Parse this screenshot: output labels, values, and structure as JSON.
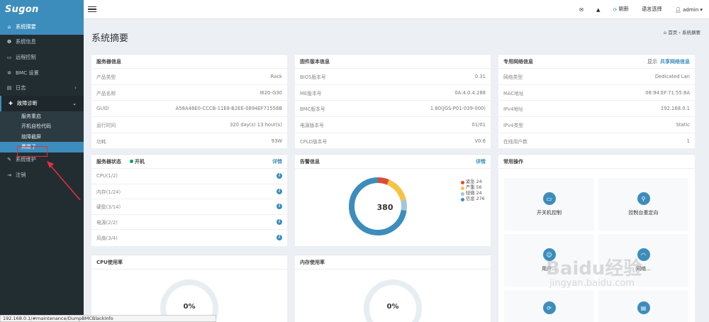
{
  "app": {
    "logo": "Sugon"
  },
  "sidebar": {
    "items": [
      {
        "label": "系统摘要",
        "icon": "home-icon",
        "glyph": "⌂"
      },
      {
        "label": "系统信息",
        "icon": "info-icon",
        "glyph": "❶"
      },
      {
        "label": "远程控制",
        "icon": "monitor-icon",
        "glyph": "▭"
      },
      {
        "label": "BMC 设置",
        "icon": "gear-icon",
        "glyph": "✲"
      },
      {
        "label": "日志",
        "icon": "log-icon",
        "glyph": "▤",
        "chevron": "›"
      },
      {
        "label": "故障诊断",
        "icon": "diagnosis-icon",
        "glyph": "✚",
        "chevron": "⌄"
      }
    ],
    "submenu": [
      "服务重启",
      "开机自检代码",
      "故障截屏",
      "黑匣子"
    ],
    "items_after": [
      {
        "label": "系统维护",
        "icon": "wrench-icon",
        "glyph": "✎"
      },
      {
        "label": "注销",
        "icon": "logout-icon",
        "glyph": "⇥"
      }
    ]
  },
  "topbar": {
    "refresh": "刷新",
    "language": "语言选择",
    "user": "admin",
    "caret": "▾"
  },
  "page": {
    "title": "系统摘要",
    "breadcrumb_home": "首页",
    "breadcrumb_sep": "›",
    "breadcrumb_current": "系统摘要"
  },
  "server_info": {
    "title": "服务器信息",
    "rows": [
      {
        "k": "产品类型",
        "v": "Rack"
      },
      {
        "k": "产品名称",
        "v": "I620-G30"
      },
      {
        "k": "GUID",
        "v": "A58A46E0-CCCB-11E8-B2EE-0894EF71558B"
      },
      {
        "k": "运行时间",
        "v": "320 day(s) 13 hour(s)"
      },
      {
        "k": "功耗",
        "v": "93W"
      }
    ]
  },
  "firmware": {
    "title": "固件版本信息",
    "rows": [
      {
        "k": "BIOS版本号",
        "v": "0.31"
      },
      {
        "k": "ME版本号",
        "v": "0A:4.0.4.288"
      },
      {
        "k": "BMC版本号",
        "v": "1.80(JGS-P01-039-000)"
      },
      {
        "k": "电源版本号",
        "v": "01/01"
      },
      {
        "k": "CPLD版本号",
        "v": "V0.6"
      }
    ]
  },
  "network": {
    "title": "专用网络信息",
    "show": "显示",
    "shared": "共享网络信息",
    "rows": [
      {
        "k": "网络类型",
        "v": "Dedicated Lan"
      },
      {
        "k": "MAC地址",
        "v": "08:94:EF:71:55:8A"
      },
      {
        "k": "IPv4地址",
        "v": "192.168.0.1"
      },
      {
        "k": "IPv4类型",
        "v": "Static"
      },
      {
        "k": "在线用户数",
        "v": "1"
      }
    ]
  },
  "server_status": {
    "title": "服务器状态",
    "power": "开机",
    "details": "详情",
    "rows": [
      "CPU(1/2)",
      "内存(1/24)",
      "硬盘(3/14)",
      "电源(2/2)",
      "风扇(3/4)"
    ]
  },
  "alarm": {
    "title": "告警信息",
    "details": "详情",
    "total": "380",
    "legend": [
      {
        "label": "紧急 24",
        "value": 24,
        "color": "#dd4b39"
      },
      {
        "label": "严重 56",
        "value": 56,
        "color": "#f6c344"
      },
      {
        "label": "轻微 24",
        "value": 24,
        "color": "#a2c6e0"
      },
      {
        "label": "信息 276",
        "value": 276,
        "color": "#3c8dbc"
      }
    ]
  },
  "common_ops": {
    "title": "常用操作",
    "cards": [
      {
        "label": "开关机控制",
        "icon": "monitor-icon",
        "glyph": "▭"
      },
      {
        "label": "控制台重定向",
        "icon": "joystick-icon",
        "glyph": "⚲"
      },
      {
        "label": "用户...",
        "icon": "user-icon",
        "glyph": "☺"
      },
      {
        "label": "网络...",
        "icon": "wifi-icon",
        "glyph": "◠"
      },
      {
        "label": "",
        "icon": "refresh-icon",
        "glyph": "⟳"
      },
      {
        "label": "",
        "icon": "document-icon",
        "glyph": "▤"
      }
    ]
  },
  "cpu_usage": {
    "title": "CPU使用率",
    "value": "0%"
  },
  "mem_usage": {
    "title": "内存使用率",
    "value": "0%"
  },
  "statusbar": {
    "url": "192.168.0.1/#maintenance/DumpBMCBlackInfo"
  },
  "watermark": {
    "text": "Baidu经验",
    "sub": "jingyan.baidu.com"
  },
  "colors": {
    "accent": "#3c8dbc",
    "sidebar": "#222d32",
    "annotation": "#e0303a",
    "online": "#00a65a"
  }
}
